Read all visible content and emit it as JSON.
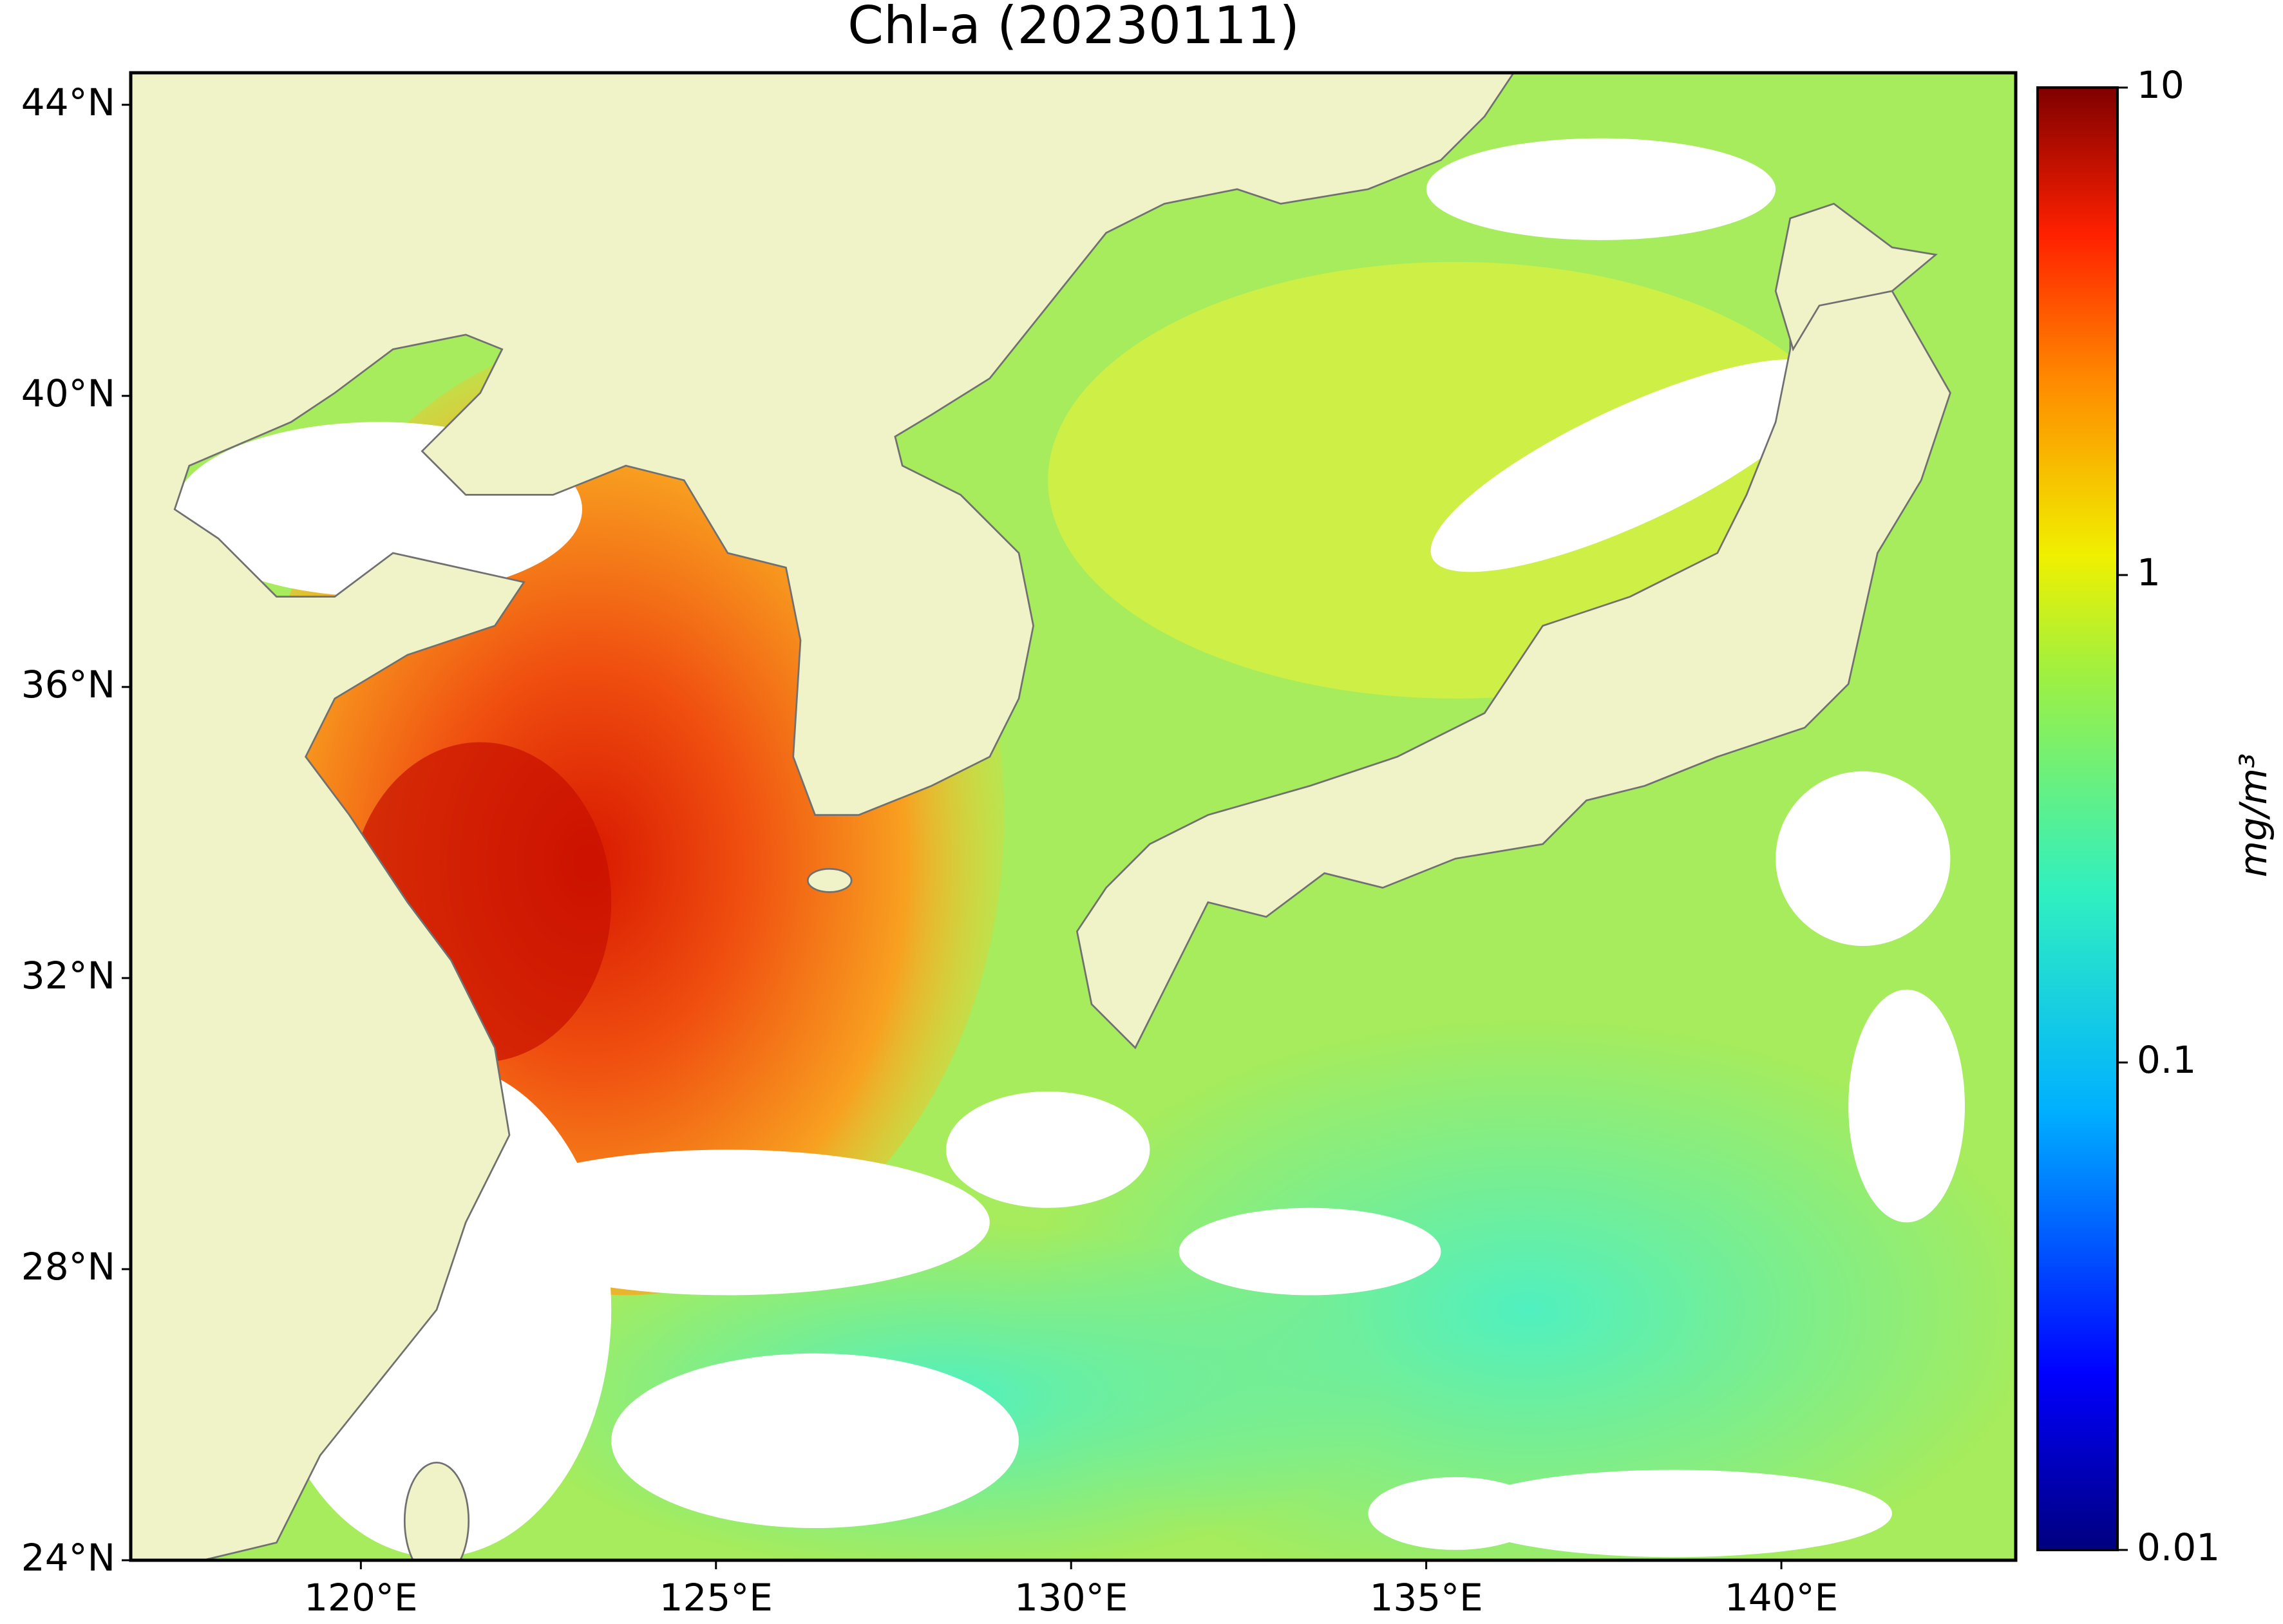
{
  "title": "Chl-a (20230111)",
  "map": {
    "xlim": [
      116.76,
      143.3
    ],
    "ylim": [
      24,
      44.44
    ],
    "xticks": [
      {
        "value": 120,
        "label": "120°E"
      },
      {
        "value": 125,
        "label": "125°E"
      },
      {
        "value": 130,
        "label": "130°E"
      },
      {
        "value": 135,
        "label": "135°E"
      },
      {
        "value": 140,
        "label": "140°E"
      }
    ],
    "yticks": [
      {
        "value": 24,
        "label": "24°N"
      },
      {
        "value": 28,
        "label": "28°N"
      },
      {
        "value": 32,
        "label": "32°N"
      },
      {
        "value": 36,
        "label": "36°N"
      },
      {
        "value": 40,
        "label": "40°N"
      },
      {
        "value": 44,
        "label": "44°N"
      }
    ]
  },
  "colorbar": {
    "label": "mg/m³",
    "scale": "log",
    "lim": [
      0.01,
      10
    ],
    "ticks": [
      0.01,
      0.1,
      1,
      10
    ]
  }
}
